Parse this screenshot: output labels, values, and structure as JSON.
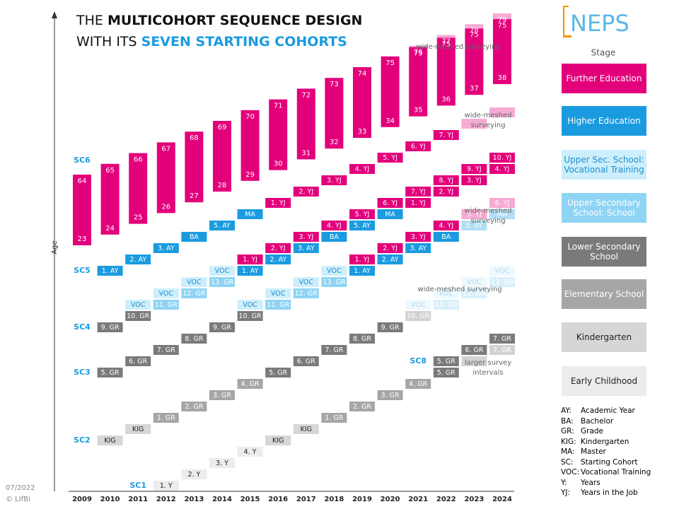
{
  "title": {
    "line1": [
      "THE",
      "MULTICOHORT SEQUENCE DESIGN"
    ],
    "line2": [
      "WITH ITS",
      "SEVEN STARTING COHORTS"
    ]
  },
  "logo": "NEPS",
  "y_axis_label": "Age",
  "years": [
    "2009",
    "2010",
    "2011",
    "2012",
    "2013",
    "2014",
    "2015",
    "2016",
    "2017",
    "2018",
    "2019",
    "2020",
    "2021",
    "2022",
    "2023",
    "2024"
  ],
  "legend": {
    "title": "Stage",
    "items": [
      {
        "lines": [
          "Further Education"
        ],
        "color": "#e3007b",
        "text_color": "#ffffff"
      },
      {
        "lines": [
          "Higher Education"
        ],
        "color": "#1a9be0",
        "text_color": "#ffffff"
      },
      {
        "lines": [
          "Upper Sec. School:",
          "Vocational Training"
        ],
        "color": "#cdeefc",
        "text_color": "#1a8fd0"
      },
      {
        "lines": [
          "Upper Secondary",
          "School: School"
        ],
        "color": "#8fd4f4",
        "text_color": "#ffffff"
      },
      {
        "lines": [
          "Lower Secondary",
          "School"
        ],
        "color": "#7a7a7a",
        "text_color": "#ffffff"
      },
      {
        "lines": [
          "Elementary School"
        ],
        "color": "#a6a6a6",
        "text_color": "#ffffff"
      },
      {
        "lines": [
          "Kindergarten"
        ],
        "color": "#d6d6d6",
        "text_color": "#222222"
      },
      {
        "lines": [
          "Early Childhood"
        ],
        "color": "#ececec",
        "text_color": "#222222"
      }
    ]
  },
  "abbreviations": [
    [
      "AY:",
      "Academic Year"
    ],
    [
      "BA:",
      "Bachelor"
    ],
    [
      "GR:",
      "Grade"
    ],
    [
      "KIG:",
      "Kindergarten"
    ],
    [
      "MA:",
      "Master"
    ],
    [
      "SC:",
      "Starting Cohort"
    ],
    [
      "VOC:",
      "Vocational Training"
    ],
    [
      "Y:",
      "Years"
    ],
    [
      "YJ:",
      "Years in the Job"
    ]
  ],
  "long_cohort": {
    "label": "SC6",
    "bars": [
      {
        "low": 23,
        "high": 64
      },
      {
        "low": 24,
        "high": 65
      },
      {
        "low": 25,
        "high": 66
      },
      {
        "low": 26,
        "high": 67
      },
      {
        "low": 27,
        "high": 68
      },
      {
        "low": 28,
        "high": 69
      },
      {
        "low": 29,
        "high": 70
      },
      {
        "low": 30,
        "high": 71
      },
      {
        "low": 31,
        "high": 72
      },
      {
        "low": 32,
        "high": 73
      },
      {
        "low": 33,
        "high": 74
      },
      {
        "low": 34,
        "high": 75
      },
      {
        "low": 35,
        "high": 75,
        "beyond": 76
      },
      {
        "low": 36,
        "high": 75,
        "beyond": 77
      },
      {
        "low": 37,
        "high": 75,
        "beyond": 78
      },
      {
        "low": 38,
        "high": 75,
        "beyond": 79
      }
    ]
  },
  "cohorts": [
    {
      "label": "SC1",
      "tracks": [
        [
          {
            "year": "2012",
            "text": "1. Y",
            "stage": 7
          },
          {
            "year": "2013",
            "text": "2. Y",
            "stage": 7
          },
          {
            "year": "2014",
            "text": "3. Y",
            "stage": 7
          },
          {
            "year": "2015",
            "text": "4. Y",
            "stage": 7
          },
          {
            "year": "2016",
            "text": "KIG",
            "stage": 6
          },
          {
            "year": "2017",
            "text": "KIG",
            "stage": 6
          },
          {
            "year": "2018",
            "text": "1. GR",
            "stage": 5
          },
          {
            "year": "2019",
            "text": "2. GR",
            "stage": 5
          },
          {
            "year": "2020",
            "text": "3. GR",
            "stage": 5
          },
          {
            "year": "2021",
            "text": "4. GR",
            "stage": 5
          },
          {
            "year": "2022",
            "text": "5. GR",
            "stage": 4
          },
          {
            "year": "2023",
            "stage": 4,
            "faded": true
          },
          {
            "year": "2024",
            "text": "7. GR",
            "stage": 4,
            "faded": true
          }
        ]
      ]
    },
    {
      "label": "SC2",
      "tracks": [
        [
          {
            "year": "2010",
            "text": "KIG",
            "stage": 6
          },
          {
            "year": "2011",
            "text": "KIG",
            "stage": 6
          },
          {
            "year": "2012",
            "text": "1. GR",
            "stage": 5
          },
          {
            "year": "2013",
            "text": "2. GR",
            "stage": 5
          },
          {
            "year": "2014",
            "text": "3. GR",
            "stage": 5
          },
          {
            "year": "2015",
            "text": "4. GR",
            "stage": 5
          },
          {
            "year": "2016",
            "text": "5. GR",
            "stage": 4
          },
          {
            "year": "2017",
            "text": "6. GR",
            "stage": 4
          },
          {
            "year": "2018",
            "text": "7. GR",
            "stage": 4
          },
          {
            "year": "2019",
            "text": "8. GR",
            "stage": 4
          },
          {
            "year": "2020",
            "text": "9. GR",
            "stage": 4
          },
          {
            "year": "2021",
            "text": "10. GR",
            "stage": 4,
            "faded": true
          },
          {
            "year": "2022",
            "text": "11. GR",
            "stage": 3,
            "faded": true
          },
          {
            "year": "2023",
            "text": "12. GR",
            "stage": 3,
            "faded": true
          },
          {
            "year": "2024",
            "text": "13. GR",
            "stage": 3,
            "faded": true
          }
        ],
        [
          {
            "year": "2021",
            "text": "VOC",
            "stage": 2,
            "faded": true
          },
          {
            "year": "2022",
            "text": "VOC",
            "stage": 2,
            "faded": true
          },
          {
            "year": "2023",
            "text": "VOC",
            "stage": 2,
            "faded": true
          },
          {
            "year": "2024",
            "text": "VOC",
            "stage": 2,
            "faded": true
          }
        ]
      ]
    },
    {
      "label": "SC3",
      "tracks": [
        [
          {
            "year": "2010",
            "text": "5. GR",
            "stage": 4
          },
          {
            "year": "2011",
            "text": "6. GR",
            "stage": 4
          },
          {
            "year": "2012",
            "text": "7. GR",
            "stage": 4
          },
          {
            "year": "2013",
            "text": "8. GR",
            "stage": 4
          },
          {
            "year": "2014",
            "text": "9. GR",
            "stage": 4
          },
          {
            "year": "2015",
            "text": "10. GR",
            "stage": 4
          },
          {
            "year": "2016",
            "text": "11. GR",
            "stage": 3
          },
          {
            "year": "2017",
            "text": "12. GR",
            "stage": 3
          },
          {
            "year": "2018",
            "text": "13. GR",
            "stage": 3
          },
          {
            "year": "2019",
            "text": "1. AY",
            "stage": 1
          },
          {
            "year": "2020",
            "text": "2. AY",
            "stage": 1
          },
          {
            "year": "2021",
            "text": "3. AY",
            "stage": 1
          },
          {
            "year": "2022",
            "text": "BA",
            "stage": 1
          },
          {
            "year": "2023",
            "text": "5. AY",
            "stage": 1,
            "faded": true
          },
          {
            "year": "2024",
            "text": "MA",
            "stage": 1,
            "faded": true
          }
        ],
        [
          {
            "year": "2015",
            "text": "VOC",
            "stage": 2
          },
          {
            "year": "2016",
            "text": "VOC",
            "stage": 2
          },
          {
            "year": "2017",
            "text": "VOC",
            "stage": 2
          },
          {
            "year": "2018",
            "text": "VOC",
            "stage": 2
          },
          {
            "year": "2019",
            "text": "1. YJ",
            "stage": 0
          },
          {
            "year": "2020",
            "text": "2. YJ",
            "stage": 0
          },
          {
            "year": "2021",
            "text": "3. YJ",
            "stage": 0
          },
          {
            "year": "2022",
            "text": "4. YJ",
            "stage": 0
          },
          {
            "year": "2023",
            "text": "5. YJ",
            "stage": 0,
            "faded": true
          },
          {
            "year": "2024",
            "text": "6. YJ",
            "stage": 0,
            "faded": true
          }
        ]
      ]
    },
    {
      "label": "SC4",
      "tracks": [
        [
          {
            "year": "2010",
            "text": "9. GR",
            "stage": 4
          },
          {
            "year": "2011",
            "text": "10. GR",
            "stage": 4
          },
          {
            "year": "2012",
            "text": "11. GR",
            "stage": 3
          },
          {
            "year": "2013",
            "text": "12. GR",
            "stage": 3
          },
          {
            "year": "2014",
            "text": "13. GR",
            "stage": 3
          },
          {
            "year": "2015",
            "text": "1. AY",
            "stage": 1
          },
          {
            "year": "2016",
            "text": "2. AY",
            "stage": 1
          },
          {
            "year": "2017",
            "text": "3. AY",
            "stage": 1
          },
          {
            "year": "2018",
            "text": "BA",
            "stage": 1
          },
          {
            "year": "2019",
            "text": "5. AY",
            "stage": 1
          },
          {
            "year": "2020",
            "text": "MA",
            "stage": 1
          },
          {
            "year": "2021",
            "text": "1. YJ",
            "stage": 0
          },
          {
            "year": "2022",
            "text": "2. YJ",
            "stage": 0
          },
          {
            "year": "2023",
            "text": "3. YJ",
            "stage": 0
          },
          {
            "year": "2024",
            "text": "4. YJ",
            "stage": 0
          }
        ],
        [
          {
            "year": "2011",
            "text": "VOC",
            "stage": 2
          },
          {
            "year": "2012",
            "text": "VOC",
            "stage": 2
          },
          {
            "year": "2013",
            "text": "VOC",
            "stage": 2
          },
          {
            "year": "2014",
            "text": "VOC",
            "stage": 2
          },
          {
            "year": "2015",
            "text": "1. YJ",
            "stage": 0
          },
          {
            "year": "2016",
            "text": "2. YJ",
            "stage": 0
          },
          {
            "year": "2017",
            "text": "3. YJ",
            "stage": 0
          },
          {
            "year": "2018",
            "text": "4. YJ",
            "stage": 0
          },
          {
            "year": "2019",
            "text": "5. YJ",
            "stage": 0
          },
          {
            "year": "2020",
            "text": "6. YJ",
            "stage": 0
          },
          {
            "year": "2021",
            "text": "7. YJ",
            "stage": 0
          },
          {
            "year": "2022",
            "text": "8. YJ",
            "stage": 0
          },
          {
            "year": "2023",
            "text": "9. YJ",
            "stage": 0
          },
          {
            "year": "2024",
            "text": "10. YJ",
            "stage": 0
          }
        ]
      ]
    },
    {
      "label": "SC5",
      "tracks": [
        [
          {
            "year": "2010",
            "text": "1. AY",
            "stage": 1
          },
          {
            "year": "2011",
            "text": "2. AY",
            "stage": 1
          },
          {
            "year": "2012",
            "text": "3. AY",
            "stage": 1
          },
          {
            "year": "2013",
            "text": "BA",
            "stage": 1
          },
          {
            "year": "2014",
            "text": "5. AY",
            "stage": 1
          },
          {
            "year": "2015",
            "text": "MA",
            "stage": 1
          },
          {
            "year": "2016",
            "text": "1. YJ",
            "stage": 0
          },
          {
            "year": "2017",
            "text": "2. YJ",
            "stage": 0
          },
          {
            "year": "2018",
            "text": "3. YJ",
            "stage": 0
          },
          {
            "year": "2019",
            "text": "4. YJ",
            "stage": 0
          },
          {
            "year": "2020",
            "text": "5. YJ",
            "stage": 0
          },
          {
            "year": "2021",
            "text": "6. YJ",
            "stage": 0
          },
          {
            "year": "2022",
            "text": "7. YJ",
            "stage": 0
          },
          {
            "year": "2023",
            "stage": 0,
            "faded": true
          },
          {
            "year": "2024",
            "stage": 0,
            "faded": true
          }
        ]
      ]
    },
    {
      "label": "SC8",
      "tracks": [
        [
          {
            "year": "2022",
            "text": "5. GR",
            "stage": 4
          },
          {
            "year": "2023",
            "text": "6. GR",
            "stage": 4
          },
          {
            "year": "2024",
            "text": "7. GR",
            "stage": 4
          }
        ]
      ]
    }
  ],
  "annotations": [
    [
      "wide-meshed surveying"
    ],
    [
      "wide-meshed",
      "surveying"
    ],
    [
      "wide-meshed",
      "surveying"
    ],
    [
      "wide-meshed surveying"
    ],
    [
      "larger survey",
      "intervals"
    ]
  ],
  "footer": [
    "07/2022",
    "© LIfBi"
  ]
}
